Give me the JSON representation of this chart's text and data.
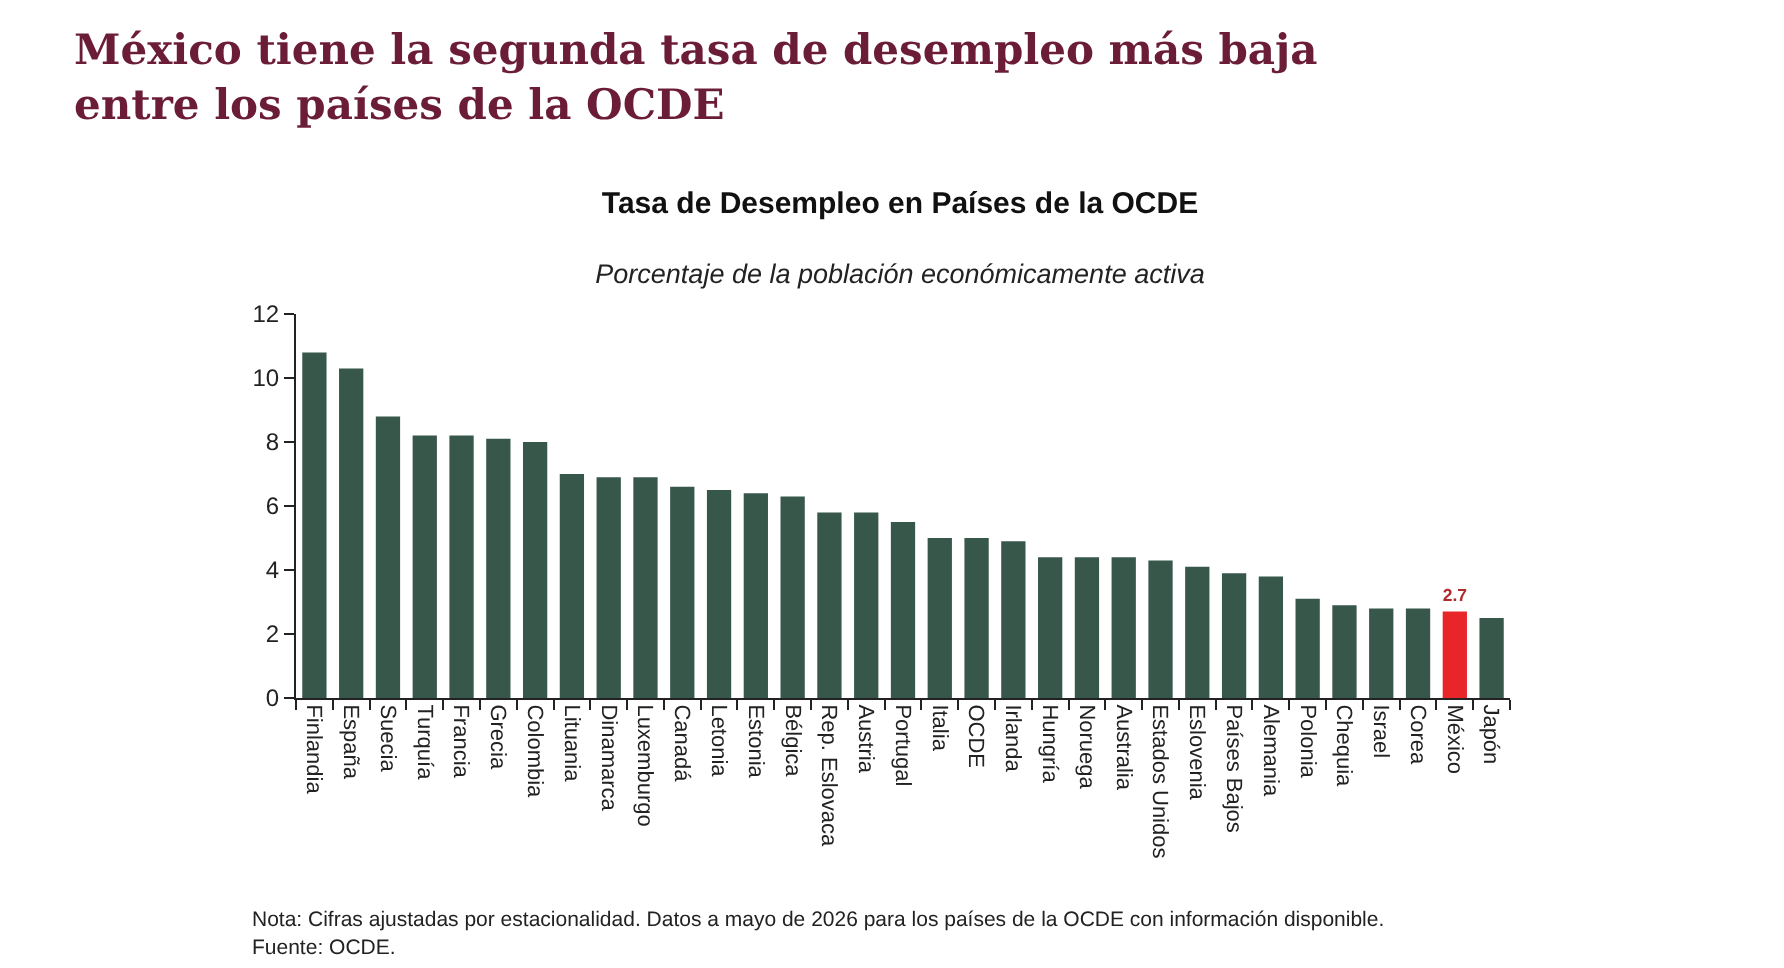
{
  "chart_data": {
    "type": "bar",
    "title": "Tasa de Desempleo en Países de la OCDE",
    "subtitle": "Porcentaje de la población económicamente activa",
    "annotations": [
      "México tiene la segunda tasa de desempleo más baja entre los países de la OCDE",
      "Nota: Cifras ajustadas por estacionalidad. Datos a mayo de 2026 para los países de la OCDE con información disponible.",
      "Fuente: OCDE."
    ],
    "categories": [
      "Finlandia",
      "España",
      "Suecia",
      "Turquía",
      "Francia",
      "Grecia",
      "Colombia",
      "Lituania",
      "Dinamarca",
      "Luxemburgo",
      "Canadá",
      "Letonia",
      "Estonia",
      "Bélgica",
      "Rep. Eslovaca",
      "Austria",
      "Portugal",
      "Italia",
      "OCDE",
      "Irlanda",
      "Hungría",
      "Noruega",
      "Australia",
      "Estados Unidos",
      "Eslovenia",
      "Países Bajos",
      "Alemania",
      "Polonia",
      "Chequia",
      "Israel",
      "Corea",
      "México",
      "Japón"
    ],
    "values": [
      10.8,
      10.3,
      8.8,
      8.2,
      8.2,
      8.1,
      8.0,
      7.0,
      6.9,
      6.9,
      6.6,
      6.5,
      6.4,
      6.3,
      5.8,
      5.8,
      5.5,
      5.0,
      5.0,
      4.9,
      4.4,
      4.4,
      4.4,
      4.3,
      4.1,
      3.9,
      3.8,
      3.1,
      2.9,
      2.8,
      2.8,
      2.7,
      2.5
    ],
    "colors": [
      "#38574b",
      "#38574b",
      "#38574b",
      "#38574b",
      "#38574b",
      "#38574b",
      "#38574b",
      "#38574b",
      "#38574b",
      "#38574b",
      "#38574b",
      "#38574b",
      "#38574b",
      "#38574b",
      "#38574b",
      "#38574b",
      "#38574b",
      "#38574b",
      "#38574b",
      "#38574b",
      "#38574b",
      "#38574b",
      "#38574b",
      "#38574b",
      "#38574b",
      "#38574b",
      "#38574b",
      "#38574b",
      "#38574b",
      "#38574b",
      "#38574b",
      "#e8262a",
      "#38574b"
    ],
    "value_labels": [
      null,
      null,
      null,
      null,
      null,
      null,
      null,
      null,
      null,
      null,
      null,
      null,
      null,
      null,
      null,
      null,
      null,
      null,
      null,
      null,
      null,
      null,
      null,
      null,
      null,
      null,
      null,
      null,
      null,
      null,
      null,
      "2.7",
      null
    ],
    "ylim": [
      0,
      12
    ],
    "yticks": [
      0,
      2,
      4,
      6,
      8,
      10,
      12
    ]
  }
}
